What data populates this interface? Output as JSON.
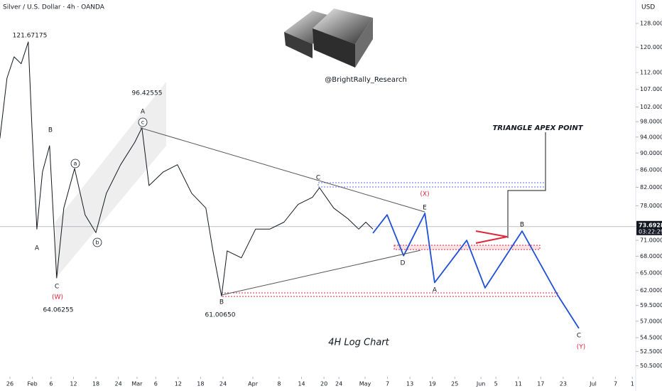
{
  "chart_data": {
    "type": "line",
    "title": "Silver / U.S. Dollar · 4h · OANDA",
    "currency": "USD",
    "log_scale": true,
    "xlim": [
      -2.66,
      167.4
    ],
    "ylim": [
      49.2,
      136.4
    ],
    "xticks": [
      {
        "value": 0,
        "label": "26"
      },
      {
        "value": 6,
        "label": "Feb"
      },
      {
        "value": 11,
        "label": "6"
      },
      {
        "value": 17,
        "label": "12"
      },
      {
        "value": 23,
        "label": "18"
      },
      {
        "value": 29,
        "label": "24"
      },
      {
        "value": 34,
        "label": "Mar"
      },
      {
        "value": 39,
        "label": "6"
      },
      {
        "value": 45,
        "label": "12"
      },
      {
        "value": 51,
        "label": "18"
      },
      {
        "value": 57,
        "label": "24"
      },
      {
        "value": 65,
        "label": "Apr"
      },
      {
        "value": 72,
        "label": "8"
      },
      {
        "value": 78,
        "label": "14"
      },
      {
        "value": 84,
        "label": "20"
      },
      {
        "value": 88,
        "label": "24"
      },
      {
        "value": 95,
        "label": "May"
      },
      {
        "value": 101,
        "label": "7"
      },
      {
        "value": 107,
        "label": "13"
      },
      {
        "value": 113,
        "label": "19"
      },
      {
        "value": 119,
        "label": "25"
      },
      {
        "value": 126,
        "label": "Jun"
      },
      {
        "value": 130,
        "label": "5"
      },
      {
        "value": 136,
        "label": "11"
      },
      {
        "value": 142,
        "label": "17"
      },
      {
        "value": 148,
        "label": "23"
      },
      {
        "value": 156,
        "label": "Jul"
      },
      {
        "value": 162,
        "label": "7"
      },
      {
        "value": 166.5,
        "label": "1"
      }
    ],
    "yticks": [
      {
        "value": 128,
        "label": "128.00000"
      },
      {
        "value": 120,
        "label": "120.00000"
      },
      {
        "value": 112,
        "label": "112.00000"
      },
      {
        "value": 107,
        "label": "107.00000"
      },
      {
        "value": 102,
        "label": "102.00000"
      },
      {
        "value": 98,
        "label": "98.00000"
      },
      {
        "value": 94,
        "label": "94.00000"
      },
      {
        "value": 90,
        "label": "90.00000"
      },
      {
        "value": 86,
        "label": "86.00000"
      },
      {
        "value": 82,
        "label": "82.00000"
      },
      {
        "value": 78,
        "label": "78.00000"
      },
      {
        "value": 71,
        "label": "71.00000"
      },
      {
        "value": 68,
        "label": "68.00000"
      },
      {
        "value": 65,
        "label": "65.00000"
      },
      {
        "value": 62,
        "label": "62.00000"
      },
      {
        "value": 59.5,
        "label": "59.50000"
      },
      {
        "value": 57,
        "label": "57.00000"
      },
      {
        "value": 54.5,
        "label": "54.50000"
      },
      {
        "value": 52.5,
        "label": "52.50000"
      },
      {
        "value": 50.5,
        "label": "50.50000"
      }
    ],
    "last_price": {
      "value": 73.6928,
      "label": "73.69280"
    },
    "countdown": "03:22:29",
    "series": [
      {
        "color": "#131722",
        "width": 1,
        "x": [
          -2.7,
          -0.8,
          1.1,
          3.0,
          4.9,
          5.9,
          7.2,
          8.7,
          10.6,
          11.6,
          12.5,
          14.4,
          17.3,
          20.1,
          23.0,
          25.8,
          29.6,
          33.4,
          35.3,
          37.2,
          41.0,
          44.8,
          48.6,
          52.4,
          54.3,
          56.6,
          58.1,
          61.9,
          65.7,
          69.5,
          73.3,
          77.1,
          80.9,
          82.8,
          86.6,
          90.4,
          93.3,
          95.2,
          97.1
        ],
        "values": [
          93.6,
          110.3,
          116.9,
          114.7,
          121.7,
          96.3,
          73.2,
          85.5,
          91.8,
          76.1,
          64.1,
          77.5,
          86.3,
          76.1,
          72.5,
          80.7,
          87.2,
          92.7,
          96.4,
          82.4,
          85.5,
          87.2,
          80.7,
          77.5,
          69.0,
          61.0,
          69.0,
          67.7,
          73.2,
          73.2,
          74.6,
          78.3,
          79.8,
          81.9,
          77.5,
          75.3,
          73.2,
          74.6,
          73.2
        ]
      },
      {
        "color": "#1e4fd8",
        "width": 1.8,
        "x": [
          97.1,
          100.9,
          105.3,
          111.0,
          113.6,
          122.2,
          127.1,
          137.0,
          146.5,
          152.2
        ],
        "values": [
          72.4,
          76.1,
          68.1,
          76.4,
          63.3,
          71.0,
          62.4,
          72.8,
          61.2,
          55.9
        ]
      },
      {
        "color": "#555555",
        "width": 1,
        "x": [
          34.8,
          111.0
        ],
        "values": [
          96.4,
          76.7
        ]
      },
      {
        "color": "#555555",
        "width": 1,
        "x": [
          56.6,
          109.8
        ],
        "values": [
          61.2,
          69.1
        ]
      }
    ],
    "annotations": [
      {
        "text": "121.67175",
        "color": "#131722"
      },
      {
        "text": "B",
        "color": "#131722"
      },
      {
        "text": "A",
        "color": "#131722"
      },
      {
        "text": "a",
        "color": "#131722",
        "circled": true
      },
      {
        "text": "b",
        "color": "#131722",
        "circled": true
      },
      {
        "text": "A",
        "color": "#131722"
      },
      {
        "text": "c",
        "color": "#131722",
        "circled": true
      },
      {
        "text": "96.42555",
        "color": "#131722"
      },
      {
        "text": "C",
        "color": "#131722"
      },
      {
        "text": "(W)",
        "color": "#e0263b"
      },
      {
        "text": "64.06255",
        "color": "#131722"
      },
      {
        "text": "B",
        "color": "#131722"
      },
      {
        "text": "61.00650",
        "color": "#131722"
      },
      {
        "text": "C",
        "color": "#131722"
      },
      {
        "text": "(X)",
        "color": "#e0263b"
      },
      {
        "text": "E",
        "color": "#131722"
      },
      {
        "text": "D",
        "color": "#131722"
      },
      {
        "text": "A",
        "color": "#131722"
      },
      {
        "text": "B",
        "color": "#131722"
      },
      {
        "text": "C",
        "color": "#131722"
      },
      {
        "text": "(Y)",
        "color": "#e0263b"
      }
    ],
    "callout": "TRIANGLE APEX POINT",
    "watermark": "@BrightRally_Research",
    "caption": "4H Log Chart"
  }
}
